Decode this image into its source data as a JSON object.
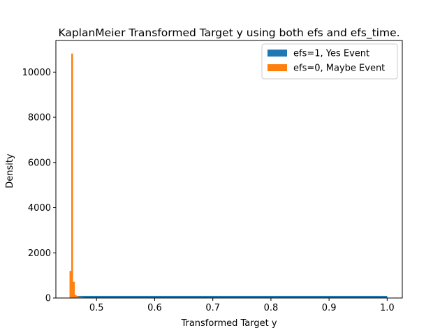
{
  "chart_data": {
    "type": "bar",
    "title": "KaplanMeier Transformed Target y using both efs and efs_time.",
    "xlabel": "Transformed Target y",
    "ylabel": "Density",
    "xlim": [
      0.43,
      1.026
    ],
    "ylim": [
      0,
      11400
    ],
    "xticks": [
      0.5,
      0.6,
      0.7,
      0.8,
      0.9,
      1.0
    ],
    "xtick_labels": [
      "0.5",
      "0.6",
      "0.7",
      "0.8",
      "0.9",
      "1.0"
    ],
    "yticks": [
      0,
      2000,
      4000,
      6000,
      8000,
      10000
    ],
    "ytick_labels": [
      "0",
      "2000",
      "4000",
      "6000",
      "8000",
      "10000"
    ],
    "grid": false,
    "legend_position": "top-right",
    "series": [
      {
        "name": "efs=1, Yes Event",
        "color": "#1f77b4",
        "bins": [
          {
            "x0": 0.458,
            "x1": 1.0,
            "value": 95
          }
        ]
      },
      {
        "name": "efs=0, Maybe Event",
        "color": "#ff7f0e",
        "bins": [
          {
            "x0": 0.4535,
            "x1": 0.4565,
            "value": 1200
          },
          {
            "x0": 0.4565,
            "x1": 0.4595,
            "value": 10820
          },
          {
            "x0": 0.4595,
            "x1": 0.4625,
            "value": 720
          },
          {
            "x0": 0.4625,
            "x1": 0.4655,
            "value": 130
          },
          {
            "x0": 0.4655,
            "x1": 0.4685,
            "value": 90
          },
          {
            "x0": 0.4685,
            "x1": 0.4715,
            "value": 60
          },
          {
            "x0": 0.4715,
            "x1": 0.4745,
            "value": 45
          },
          {
            "x0": 0.4745,
            "x1": 0.4775,
            "value": 30
          },
          {
            "x0": 0.4775,
            "x1": 0.4805,
            "value": 20
          },
          {
            "x0": 0.4805,
            "x1": 0.4835,
            "value": 12
          },
          {
            "x0": 0.4835,
            "x1": 0.4865,
            "value": 8
          },
          {
            "x0": 0.4865,
            "x1": 0.4895,
            "value": 5
          }
        ]
      }
    ]
  }
}
